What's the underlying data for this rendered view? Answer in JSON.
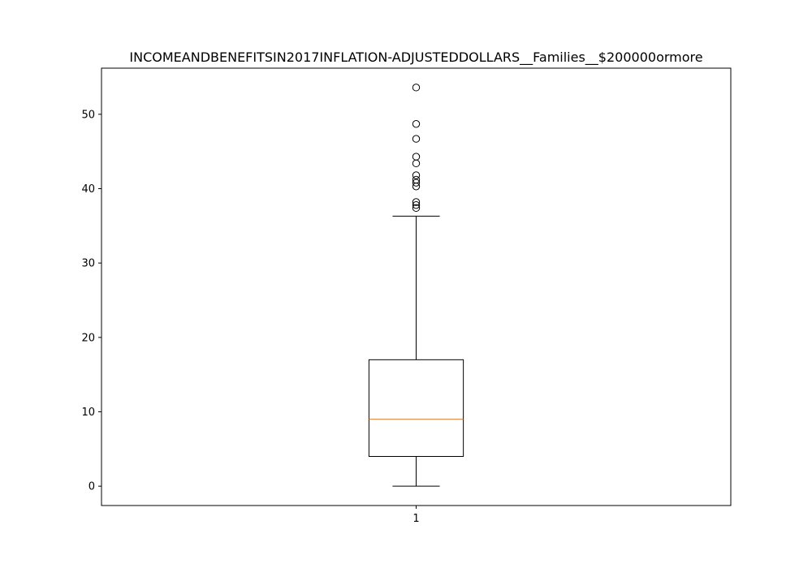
{
  "chart_data": {
    "type": "box",
    "title": "INCOMEANDBENEFITSIN2017INFLATION-ADJUSTEDDOLLARS__Families__$200000ormore",
    "xlabel": "",
    "ylabel": "",
    "categories": [
      "1"
    ],
    "ylim": [
      -2.6,
      56.2
    ],
    "yticks": [
      0,
      10,
      20,
      30,
      40,
      50
    ],
    "ytick_labels": [
      "0",
      "10",
      "20",
      "30",
      "40",
      "50"
    ],
    "grid": false,
    "boxes": [
      {
        "label": "1",
        "whisker_low": 0,
        "q1": 4.0,
        "median": 9.0,
        "q3": 17.0,
        "whisker_high": 36.3,
        "outliers": [
          37.4,
          37.8,
          38.2,
          40.3,
          40.8,
          41.2,
          41.8,
          43.4,
          44.3,
          46.7,
          48.7,
          53.6
        ]
      }
    ],
    "colors": {
      "box": "#000000",
      "median": "#ff7f0e",
      "outlier_edge": "#000000"
    }
  }
}
